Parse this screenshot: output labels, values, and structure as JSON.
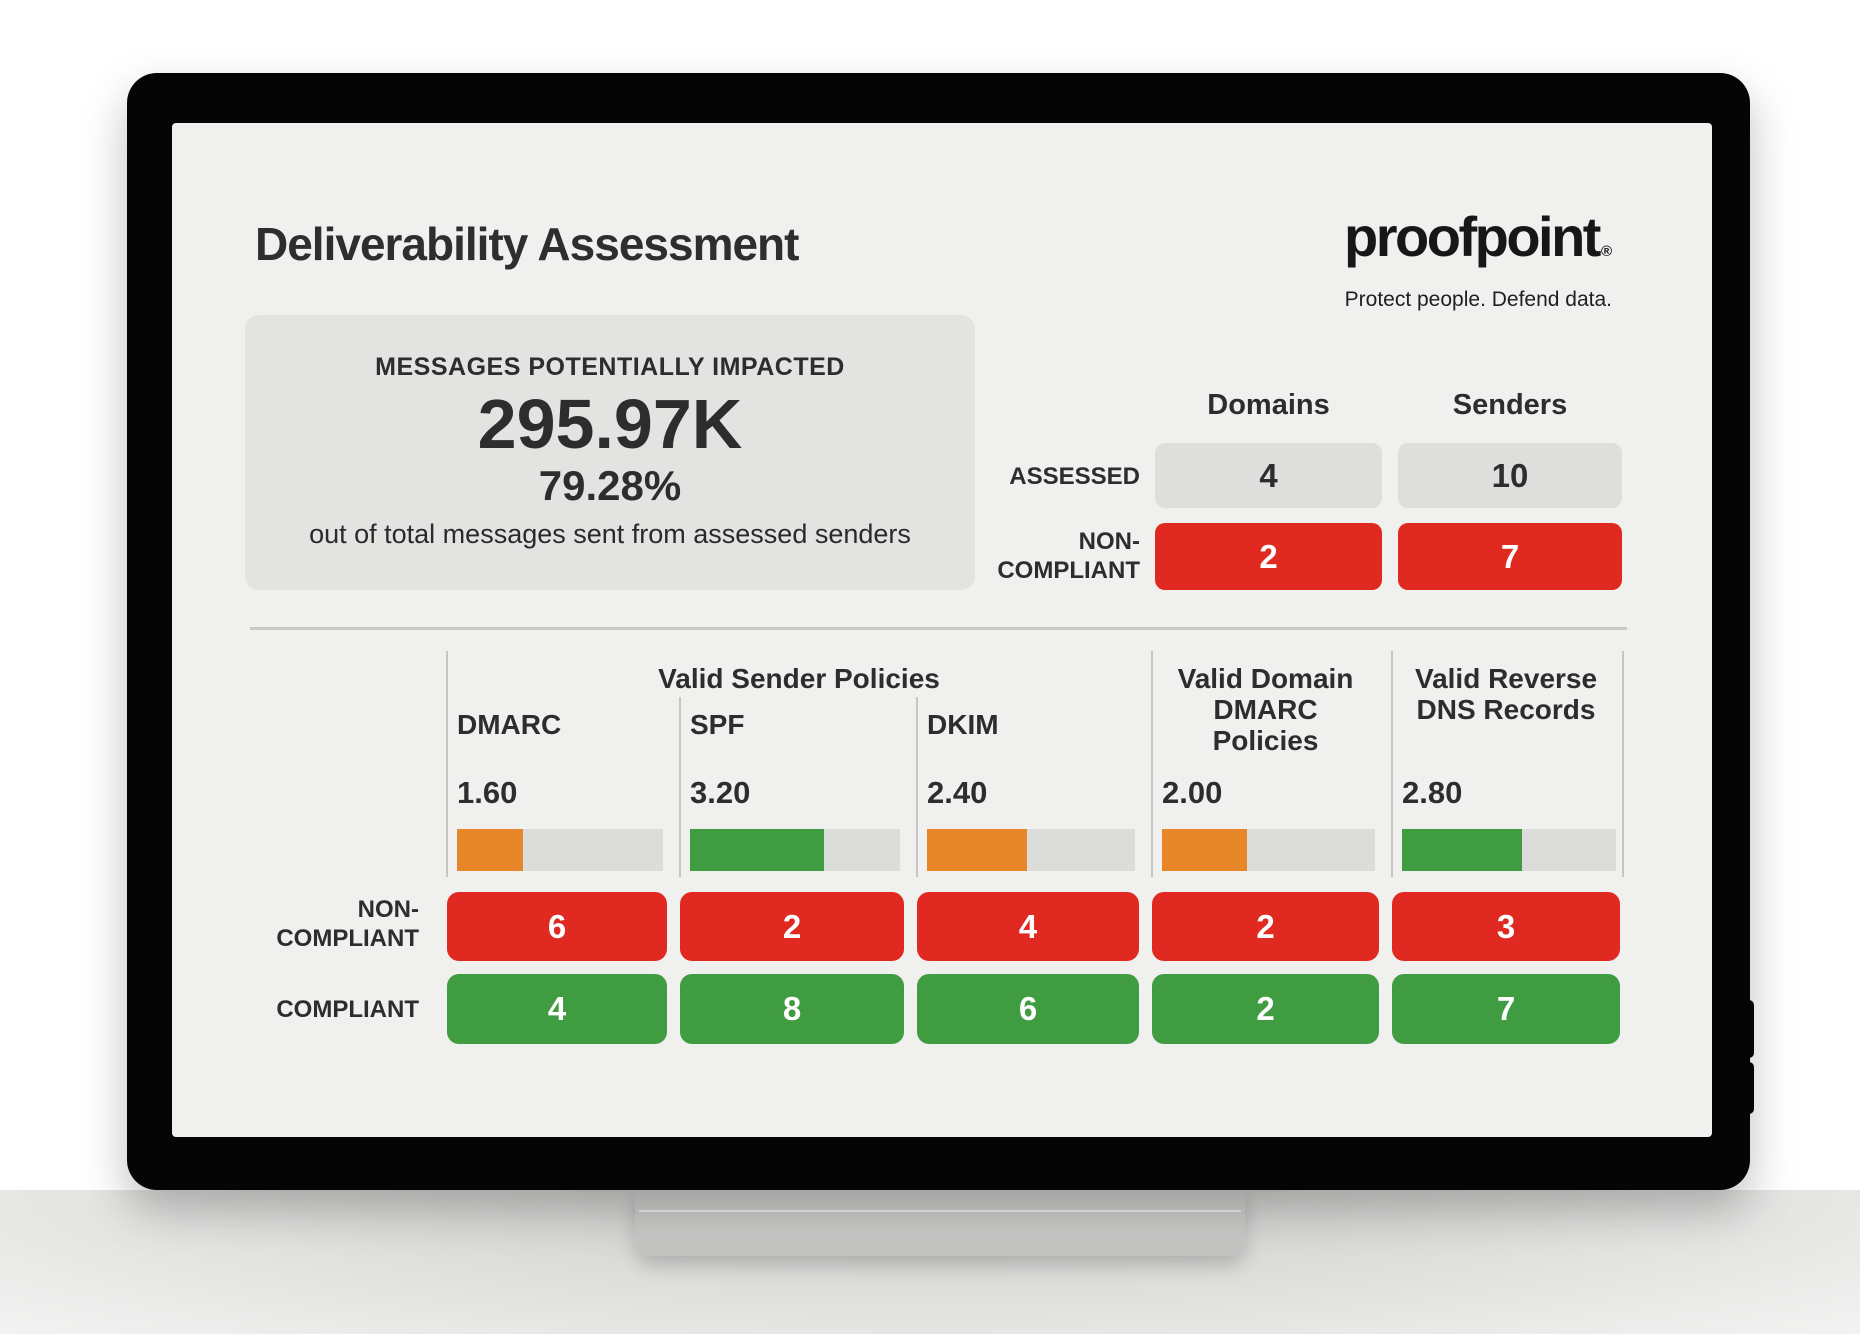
{
  "header": {
    "title": "Deliverability Assessment"
  },
  "brand": {
    "name": "proofpoint",
    "registered": "®",
    "tagline": "Protect people. Defend data."
  },
  "impact": {
    "label": "MESSAGES POTENTIALLY IMPACTED",
    "value": "295.97K",
    "percent": "79.28%",
    "caption": "out of total messages sent from assessed senders"
  },
  "summary": {
    "col_headers": [
      "Domains",
      "Senders"
    ],
    "assessed": {
      "label": "ASSESSED",
      "domains": "4",
      "senders": "10"
    },
    "noncompliant": {
      "label_line1": "NON-",
      "label_line2": "COMPLIANT",
      "domains": "2",
      "senders": "7"
    }
  },
  "policies": {
    "group_header": "Valid Sender Policies",
    "row_labels": {
      "noncompliant_line1": "NON-",
      "noncompliant_line2": "COMPLIANT",
      "compliant": "COMPLIANT"
    },
    "score_scale_max": 5,
    "columns": [
      {
        "label": "DMARC",
        "score": "1.60",
        "fill_percent": 32,
        "tone": "orange",
        "noncompliant": "6",
        "compliant": "4"
      },
      {
        "label": "SPF",
        "score": "3.20",
        "fill_percent": 64,
        "tone": "green",
        "noncompliant": "2",
        "compliant": "8"
      },
      {
        "label": "DKIM",
        "score": "2.40",
        "fill_percent": 48,
        "tone": "orange",
        "noncompliant": "4",
        "compliant": "6"
      },
      {
        "label_lines": [
          "Valid Domain",
          "DMARC",
          "Policies"
        ],
        "score": "2.00",
        "fill_percent": 40,
        "tone": "orange",
        "noncompliant": "2",
        "compliant": "2"
      },
      {
        "label_lines": [
          "Valid Reverse",
          "DNS Records"
        ],
        "score": "2.80",
        "fill_percent": 56,
        "tone": "green",
        "noncompliant": "3",
        "compliant": "7"
      }
    ]
  },
  "colors": {
    "red": "#e02a21",
    "green": "#3f9c41",
    "orange": "#e8872a",
    "neutral_box": "#dededc",
    "bar_track": "#dcdcda",
    "panel_bg": "#e3e3e1",
    "screen_bg": "#f0f0ee",
    "text": "#2d2d2d"
  }
}
